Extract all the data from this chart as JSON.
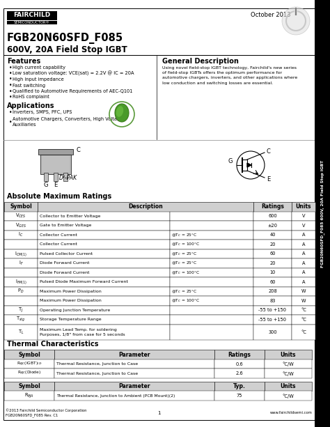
{
  "title_main": "FGB20N60SFD_F085",
  "title_sub": "600V, 20A Field Stop IGBT",
  "date": "October 2013",
  "sidebar_text": "FGB20N60SFD_F085 600V, 20A Field Stop IGBT",
  "features_title": "Features",
  "features": [
    "High current capability",
    "Low saturation voltage: VCE(sat) = 2.2V @ IC = 20A",
    "High input impedance",
    "Fast switching",
    "Qualified to Automotive Requirements of AEC-Q101",
    "RoHS complaint"
  ],
  "general_desc_title": "General Description",
  "general_desc": "Using novel field-stop IGBT technology, Fairchild's new series of field-stop IGBTs offers the optimum performance for automotive chargers, inverters, and other applications where low conduction and switching losses are essential.",
  "applications_title": "Applications",
  "applications": [
    "Inverters, SMPS, PFC, UPS",
    "Automotive Chargers, Converters, High Voltage\nAuxiliaries"
  ],
  "package_label": "D²-PAK",
  "abs_max_title": "Absolute Maximum Ratings",
  "abs_max_headers": [
    "Symbol",
    "Description",
    "Ratings",
    "Units"
  ],
  "thermal_title": "Thermal Characteristics",
  "thermal_headers": [
    "Symbol",
    "Parameter",
    "Ratings",
    "Units"
  ],
  "thermal2_headers": [
    "Symbol",
    "Parameter",
    "Typ.",
    "Units"
  ],
  "footer_left": "©2013 Fairchild Semiconductor Corporation\nFGB20N60SFD_F085 Rev. C1",
  "footer_center": "1",
  "footer_right": "www.fairchildsemi.com",
  "bg_color": "#ffffff",
  "sidebar_bg": "#000000"
}
